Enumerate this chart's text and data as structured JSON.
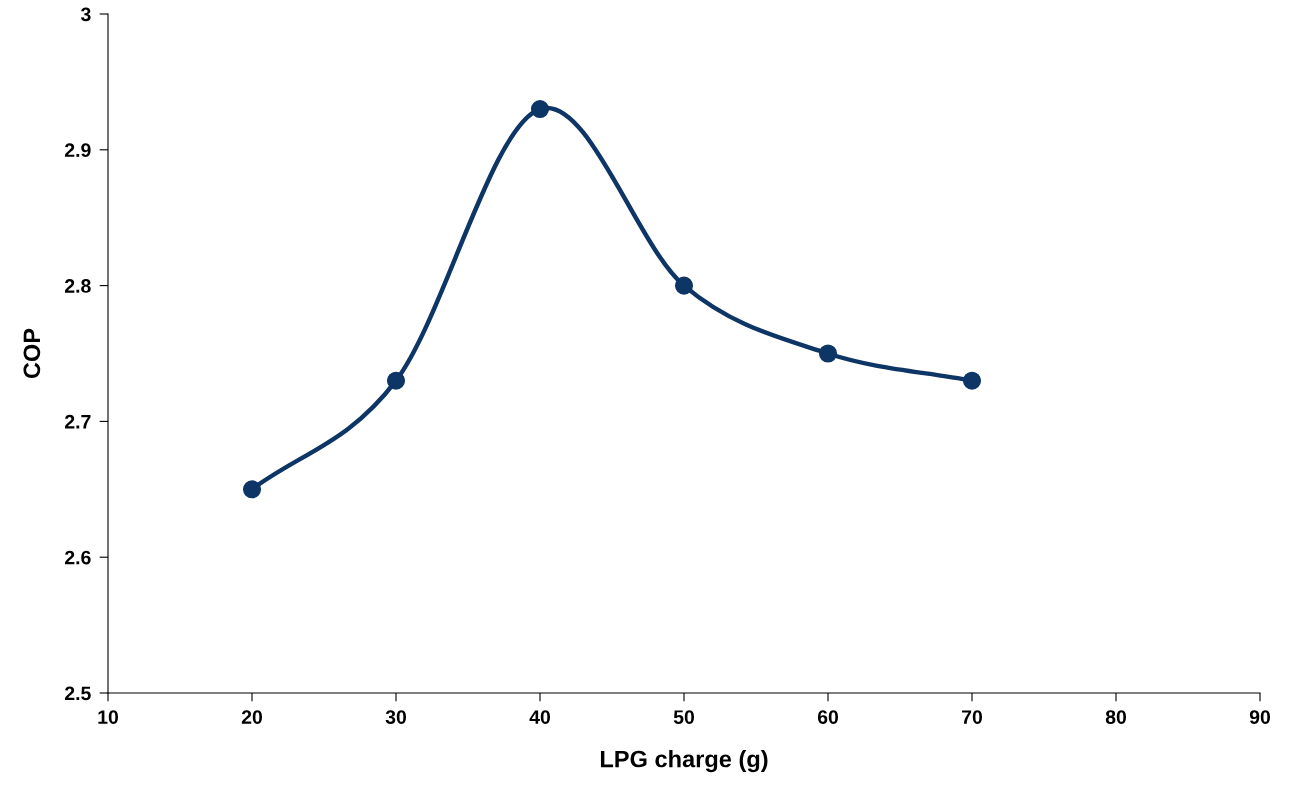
{
  "chart_data": {
    "type": "line",
    "xlabel": "LPG charge (g)",
    "ylabel": "COP",
    "x": [
      20,
      30,
      40,
      50,
      60,
      70
    ],
    "series": [
      {
        "color": "#0d3565",
        "values": [
          2.65,
          2.73,
          2.93,
          2.8,
          2.75,
          2.73
        ]
      }
    ],
    "xlim": [
      10,
      90
    ],
    "xticks": [
      10,
      20,
      30,
      40,
      50,
      60,
      70,
      80,
      90
    ],
    "ylim": [
      2.5,
      3
    ],
    "yticks": [
      2.5,
      2.6,
      2.7,
      2.8,
      2.9,
      3
    ],
    "grid": false,
    "marker": "circle",
    "line_style": "solid"
  }
}
